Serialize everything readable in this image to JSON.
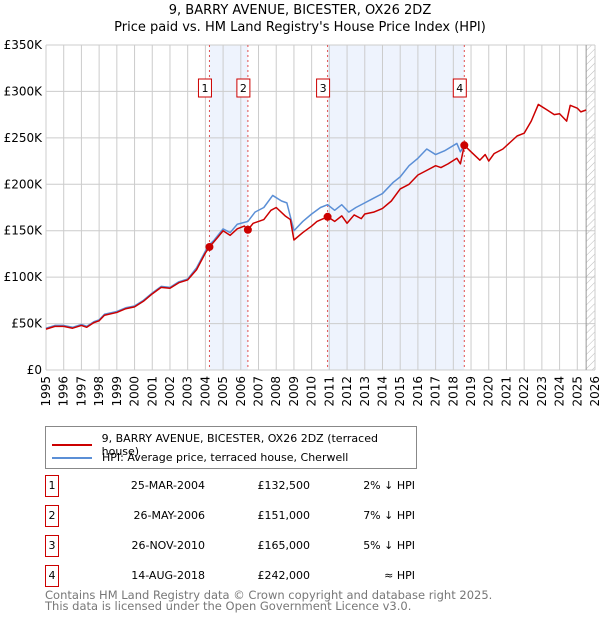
{
  "title": "9, BARRY AVENUE, BICESTER, OX26 2DZ",
  "subtitle": "Price paid vs. HM Land Registry's House Price Index (HPI)",
  "chart_data": {
    "type": "line",
    "ylabel": "",
    "xlabel": "",
    "xlim": [
      1995,
      2026
    ],
    "ylim": [
      0,
      350000
    ],
    "yticks": [
      0,
      50000,
      100000,
      150000,
      200000,
      250000,
      300000,
      350000
    ],
    "ytick_labels": [
      "£0",
      "£50K",
      "£100K",
      "£150K",
      "£200K",
      "£250K",
      "£300K",
      "£350K"
    ],
    "xtick_labels": [
      "1995",
      "1996",
      "1997",
      "1998",
      "1999",
      "2000",
      "2001",
      "2002",
      "2003",
      "2004",
      "2005",
      "2006",
      "2007",
      "2008",
      "2009",
      "2010",
      "2011",
      "2012",
      "2013",
      "2014",
      "2015",
      "2016",
      "2017",
      "2018",
      "2019",
      "2020",
      "2021",
      "2022",
      "2023",
      "2024",
      "2025",
      "2026"
    ],
    "grid": true,
    "data_end": 2025.5,
    "series": [
      {
        "name": "9, BARRY AVENUE, BICESTER, OX26 2DZ (terraced house)",
        "color": "#cc0000",
        "x": [
          1995,
          1995.5,
          1996,
          1996.5,
          1997,
          1997.3,
          1997.7,
          1998,
          1998.3,
          1999,
          1999.5,
          2000,
          2000.5,
          2001,
          2001.5,
          2002,
          2002.5,
          2003,
          2003.5,
          2004,
          2004.23,
          2004.7,
          2005,
          2005.4,
          2005.8,
          2006.2,
          2006.4,
          2006.7,
          2007,
          2007.3,
          2007.7,
          2008,
          2008.5,
          2008.8,
          2009,
          2009.5,
          2010,
          2010.3,
          2010.9,
          2011.3,
          2011.7,
          2012,
          2012.4,
          2012.8,
          2013,
          2013.5,
          2014,
          2014.5,
          2015,
          2015.5,
          2016,
          2016.5,
          2017,
          2017.3,
          2017.7,
          2018.2,
          2018.4,
          2018.62,
          2019,
          2019.5,
          2019.8,
          2020,
          2020.3,
          2020.8,
          2021.2,
          2021.6,
          2022,
          2022.4,
          2022.8,
          2023.3,
          2023.7,
          2024,
          2024.4,
          2024.6,
          2025,
          2025.2,
          2025.5
        ],
        "y": [
          44000,
          47000,
          47000,
          45000,
          48000,
          46000,
          51000,
          53000,
          59000,
          62000,
          66000,
          68000,
          74000,
          82000,
          89000,
          88000,
          94000,
          97000,
          108000,
          126000,
          132500,
          143000,
          150000,
          145000,
          152000,
          155000,
          151000,
          158000,
          160000,
          162000,
          172000,
          175000,
          166000,
          162000,
          140000,
          148000,
          155000,
          160000,
          165000,
          160000,
          166000,
          158000,
          167000,
          163000,
          168000,
          170000,
          174000,
          182000,
          195000,
          200000,
          210000,
          215000,
          220000,
          218000,
          222000,
          228000,
          222000,
          242000,
          235000,
          226000,
          232000,
          225000,
          233000,
          238000,
          245000,
          252000,
          255000,
          268000,
          286000,
          280000,
          275000,
          276000,
          268000,
          285000,
          282000,
          278000,
          280000
        ]
      },
      {
        "name": "HPI: Average price, terraced house, Cherwell",
        "color": "#5b8fd6",
        "x": [
          1995,
          1995.5,
          1996,
          1996.5,
          1997,
          1997.3,
          1997.7,
          1998,
          1998.3,
          1999,
          1999.5,
          2000,
          2000.5,
          2001,
          2001.5,
          2002,
          2002.5,
          2003,
          2003.5,
          2004,
          2004.23,
          2004.5,
          2005,
          2005.4,
          2005.8,
          2006.4,
          2006.8,
          2007.3,
          2007.8,
          2008.3,
          2008.6,
          2009,
          2009.5,
          2010,
          2010.5,
          2010.9,
          2011.3,
          2011.7,
          2012.1,
          2012.5,
          2013,
          2013.5,
          2014,
          2014.6,
          2015,
          2015.5,
          2016,
          2016.5,
          2017,
          2017.5,
          2018.2,
          2018.4,
          2018.62
        ],
        "y": [
          45000,
          48000,
          48000,
          46000,
          49000,
          47000,
          52000,
          54000,
          60000,
          63000,
          67000,
          69000,
          75000,
          83000,
          90000,
          89000,
          95000,
          98000,
          110000,
          128000,
          135000,
          140000,
          152000,
          148000,
          157000,
          160000,
          170000,
          175000,
          188000,
          182000,
          180000,
          150000,
          160000,
          168000,
          175000,
          178000,
          172000,
          178000,
          170000,
          175000,
          180000,
          185000,
          190000,
          202000,
          208000,
          220000,
          228000,
          238000,
          232000,
          236000,
          244000,
          235000,
          242000
        ]
      }
    ],
    "sales": [
      {
        "id": "1",
        "x": 2004.23,
        "y": 132500
      },
      {
        "id": "2",
        "x": 2006.4,
        "y": 151000
      },
      {
        "id": "3",
        "x": 2010.9,
        "y": 165000
      },
      {
        "id": "4",
        "x": 2018.62,
        "y": 242000
      }
    ]
  },
  "legend": {
    "red": "9, BARRY AVENUE, BICESTER, OX26 2DZ (terraced house)",
    "blue": "HPI: Average price, terraced house, Cherwell"
  },
  "transactions": [
    {
      "id": "1",
      "date": "25-MAR-2004",
      "price": "£132,500",
      "rel": "2% ↓ HPI"
    },
    {
      "id": "2",
      "date": "26-MAY-2006",
      "price": "£151,000",
      "rel": "7% ↓ HPI"
    },
    {
      "id": "3",
      "date": "26-NOV-2010",
      "price": "£165,000",
      "rel": "5% ↓ HPI"
    },
    {
      "id": "4",
      "date": "14-AUG-2018",
      "price": "£242,000",
      "rel": "≈ HPI"
    }
  ],
  "footer": {
    "line1": "Contains HM Land Registry data © Crown copyright and database right 2025.",
    "line2": "This data is licensed under the Open Government Licence v3.0."
  }
}
